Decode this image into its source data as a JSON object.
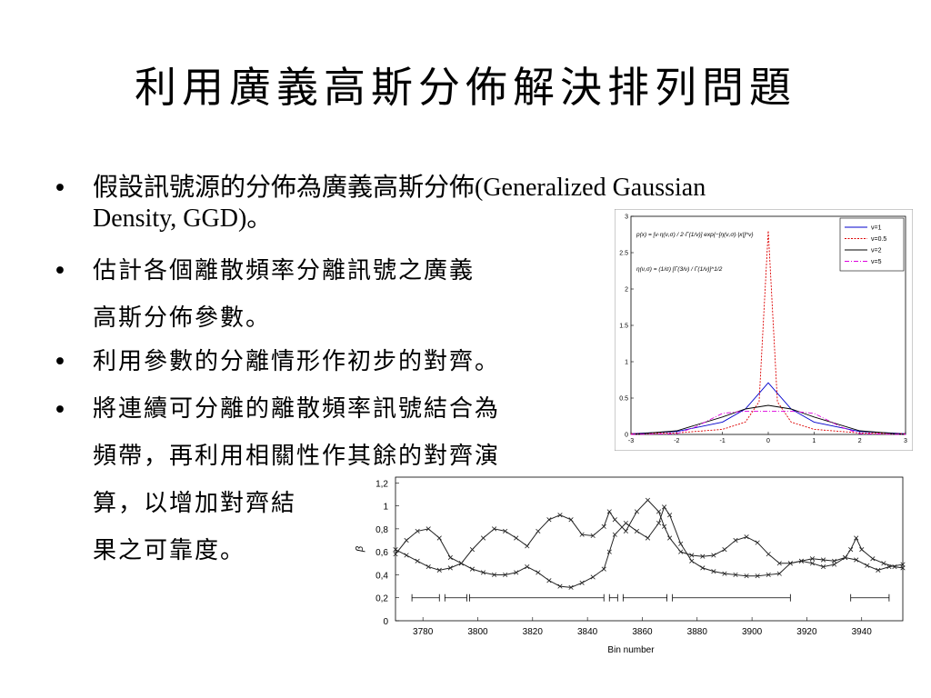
{
  "slide": {
    "title": "利用廣義高斯分佈解決排列問題",
    "bullet_symbol": "•",
    "bullets": [
      {
        "lines": [
          "假設訊號源的分佈為廣義高斯分佈(Generalized Gaussian",
          "Density, GGD)。"
        ]
      },
      {
        "lines": [
          "估計各個離散頻率分離訊號之廣義",
          "高斯分佈參數。"
        ]
      },
      {
        "lines": [
          "利用參數的分離情形作初步的對齊。"
        ]
      },
      {
        "lines": [
          "將連續可分離的離散頻率訊號結合為",
          "頻帶，再利用相關性作其餘的對齊演",
          "算，以增加對齊結",
          "果之可靠度。"
        ]
      }
    ]
  },
  "chart_data": [
    {
      "type": "line",
      "title": "",
      "xlabel": "",
      "ylabel": "",
      "xlim": [
        -3,
        3
      ],
      "ylim": [
        0,
        3
      ],
      "xticks": [
        -3,
        -2,
        -1,
        0,
        1,
        2,
        3
      ],
      "yticks": [
        0,
        0.5,
        1,
        1.5,
        2,
        2.5,
        3
      ],
      "formula_lines": [
        "p(x) = [ν·η(ν,σ) / 2·Γ(1/ν)] exp{−[η(ν,σ)·|x|]^ν}",
        "η(ν,σ) = (1/σ) [Γ(3/ν) / Γ(1/ν)]^1/2"
      ],
      "legend_position": "top-right",
      "series": [
        {
          "name": "ν=1",
          "color": "#0000cc",
          "dash": "solid",
          "nu": 1,
          "x": [
            -3,
            -2,
            -1,
            -0.5,
            0,
            0.5,
            1,
            2,
            3
          ],
          "y": [
            0.01,
            0.04,
            0.17,
            0.35,
            0.71,
            0.35,
            0.17,
            0.04,
            0.01
          ]
        },
        {
          "name": "ν=0.5",
          "color": "#dd0000",
          "dash": "dotted",
          "nu": 0.5,
          "x": [
            -3,
            -2,
            -1,
            -0.5,
            -0.2,
            0,
            0.2,
            0.5,
            1,
            2,
            3
          ],
          "y": [
            0.01,
            0.02,
            0.07,
            0.17,
            0.45,
            2.8,
            0.45,
            0.17,
            0.07,
            0.02,
            0.01
          ]
        },
        {
          "name": "ν=2",
          "color": "#000000",
          "dash": "solid",
          "nu": 2,
          "x": [
            -3,
            -2,
            -1,
            -0.5,
            0,
            0.5,
            1,
            2,
            3
          ],
          "y": [
            0.0,
            0.05,
            0.24,
            0.35,
            0.4,
            0.35,
            0.24,
            0.05,
            0.0
          ]
        },
        {
          "name": "ν=5",
          "color": "#dd00dd",
          "dash": "dashdot",
          "nu": 5,
          "x": [
            -3,
            -2,
            -1.6,
            -1,
            -0.5,
            0,
            0.5,
            1,
            1.6,
            2,
            3
          ],
          "y": [
            0.0,
            0.01,
            0.1,
            0.29,
            0.32,
            0.32,
            0.32,
            0.29,
            0.1,
            0.01,
            0.0
          ]
        }
      ]
    },
    {
      "type": "line",
      "title": "",
      "xlabel": "Bin number",
      "ylabel": "β",
      "xlim": [
        3770,
        3955
      ],
      "ylim": [
        0,
        1.25
      ],
      "xticks": [
        3780,
        3800,
        3820,
        3840,
        3860,
        3880,
        3900,
        3920,
        3940
      ],
      "yticks": [
        0,
        0.2,
        0.4,
        0.6,
        0.8,
        1,
        1.2
      ],
      "ytick_labels": [
        "0",
        "0,2",
        "0,4",
        "0,6",
        "0,8",
        "1",
        "1,2"
      ],
      "grid": false,
      "series": [
        {
          "name": "",
          "color": "#222222",
          "marker": "x",
          "x": [
            3770,
            3774,
            3778,
            3782,
            3786,
            3790,
            3794,
            3798,
            3802,
            3806,
            3810,
            3814,
            3818,
            3822,
            3826,
            3830,
            3834,
            3838,
            3842,
            3846,
            3848,
            3850,
            3854,
            3858,
            3862,
            3866,
            3868,
            3870,
            3874,
            3878,
            3882,
            3886,
            3890,
            3894,
            3898,
            3902,
            3906,
            3910,
            3914,
            3918,
            3922,
            3926,
            3930,
            3934,
            3936,
            3938,
            3940,
            3944,
            3948,
            3952,
            3955
          ],
          "y": [
            0.58,
            0.7,
            0.78,
            0.8,
            0.72,
            0.55,
            0.5,
            0.62,
            0.72,
            0.8,
            0.78,
            0.72,
            0.65,
            0.78,
            0.88,
            0.92,
            0.88,
            0.75,
            0.74,
            0.82,
            0.95,
            0.88,
            0.78,
            0.95,
            1.05,
            0.95,
            0.82,
            0.72,
            0.6,
            0.57,
            0.56,
            0.57,
            0.62,
            0.7,
            0.73,
            0.68,
            0.58,
            0.5,
            0.5,
            0.52,
            0.54,
            0.53,
            0.52,
            0.55,
            0.62,
            0.72,
            0.62,
            0.54,
            0.5,
            0.47,
            0.46
          ]
        },
        {
          "name": "",
          "color": "#222222",
          "marker": "x",
          "x": [
            3770,
            3774,
            3778,
            3782,
            3786,
            3790,
            3794,
            3798,
            3802,
            3806,
            3810,
            3814,
            3818,
            3822,
            3826,
            3830,
            3834,
            3838,
            3842,
            3846,
            3848,
            3850,
            3854,
            3858,
            3862,
            3866,
            3868,
            3870,
            3874,
            3878,
            3882,
            3886,
            3890,
            3894,
            3898,
            3902,
            3906,
            3910,
            3914,
            3918,
            3922,
            3926,
            3930,
            3934,
            3938,
            3942,
            3946,
            3950,
            3955
          ],
          "y": [
            0.62,
            0.57,
            0.52,
            0.47,
            0.44,
            0.46,
            0.5,
            0.45,
            0.42,
            0.4,
            0.4,
            0.42,
            0.47,
            0.42,
            0.35,
            0.3,
            0.29,
            0.33,
            0.38,
            0.45,
            0.6,
            0.75,
            0.85,
            0.78,
            0.72,
            0.85,
            0.99,
            0.92,
            0.67,
            0.52,
            0.46,
            0.43,
            0.41,
            0.4,
            0.39,
            0.39,
            0.4,
            0.41,
            0.5,
            0.52,
            0.5,
            0.47,
            0.49,
            0.55,
            0.53,
            0.48,
            0.44,
            0.47,
            0.49
          ]
        }
      ],
      "intervals": [
        [
          3776,
          3786
        ],
        [
          3788,
          3796
        ],
        [
          3797,
          3846
        ],
        [
          3848,
          3851
        ],
        [
          3853,
          3869
        ],
        [
          3871,
          3914
        ],
        [
          3936,
          3950
        ]
      ],
      "interval_level": 0.2
    }
  ]
}
